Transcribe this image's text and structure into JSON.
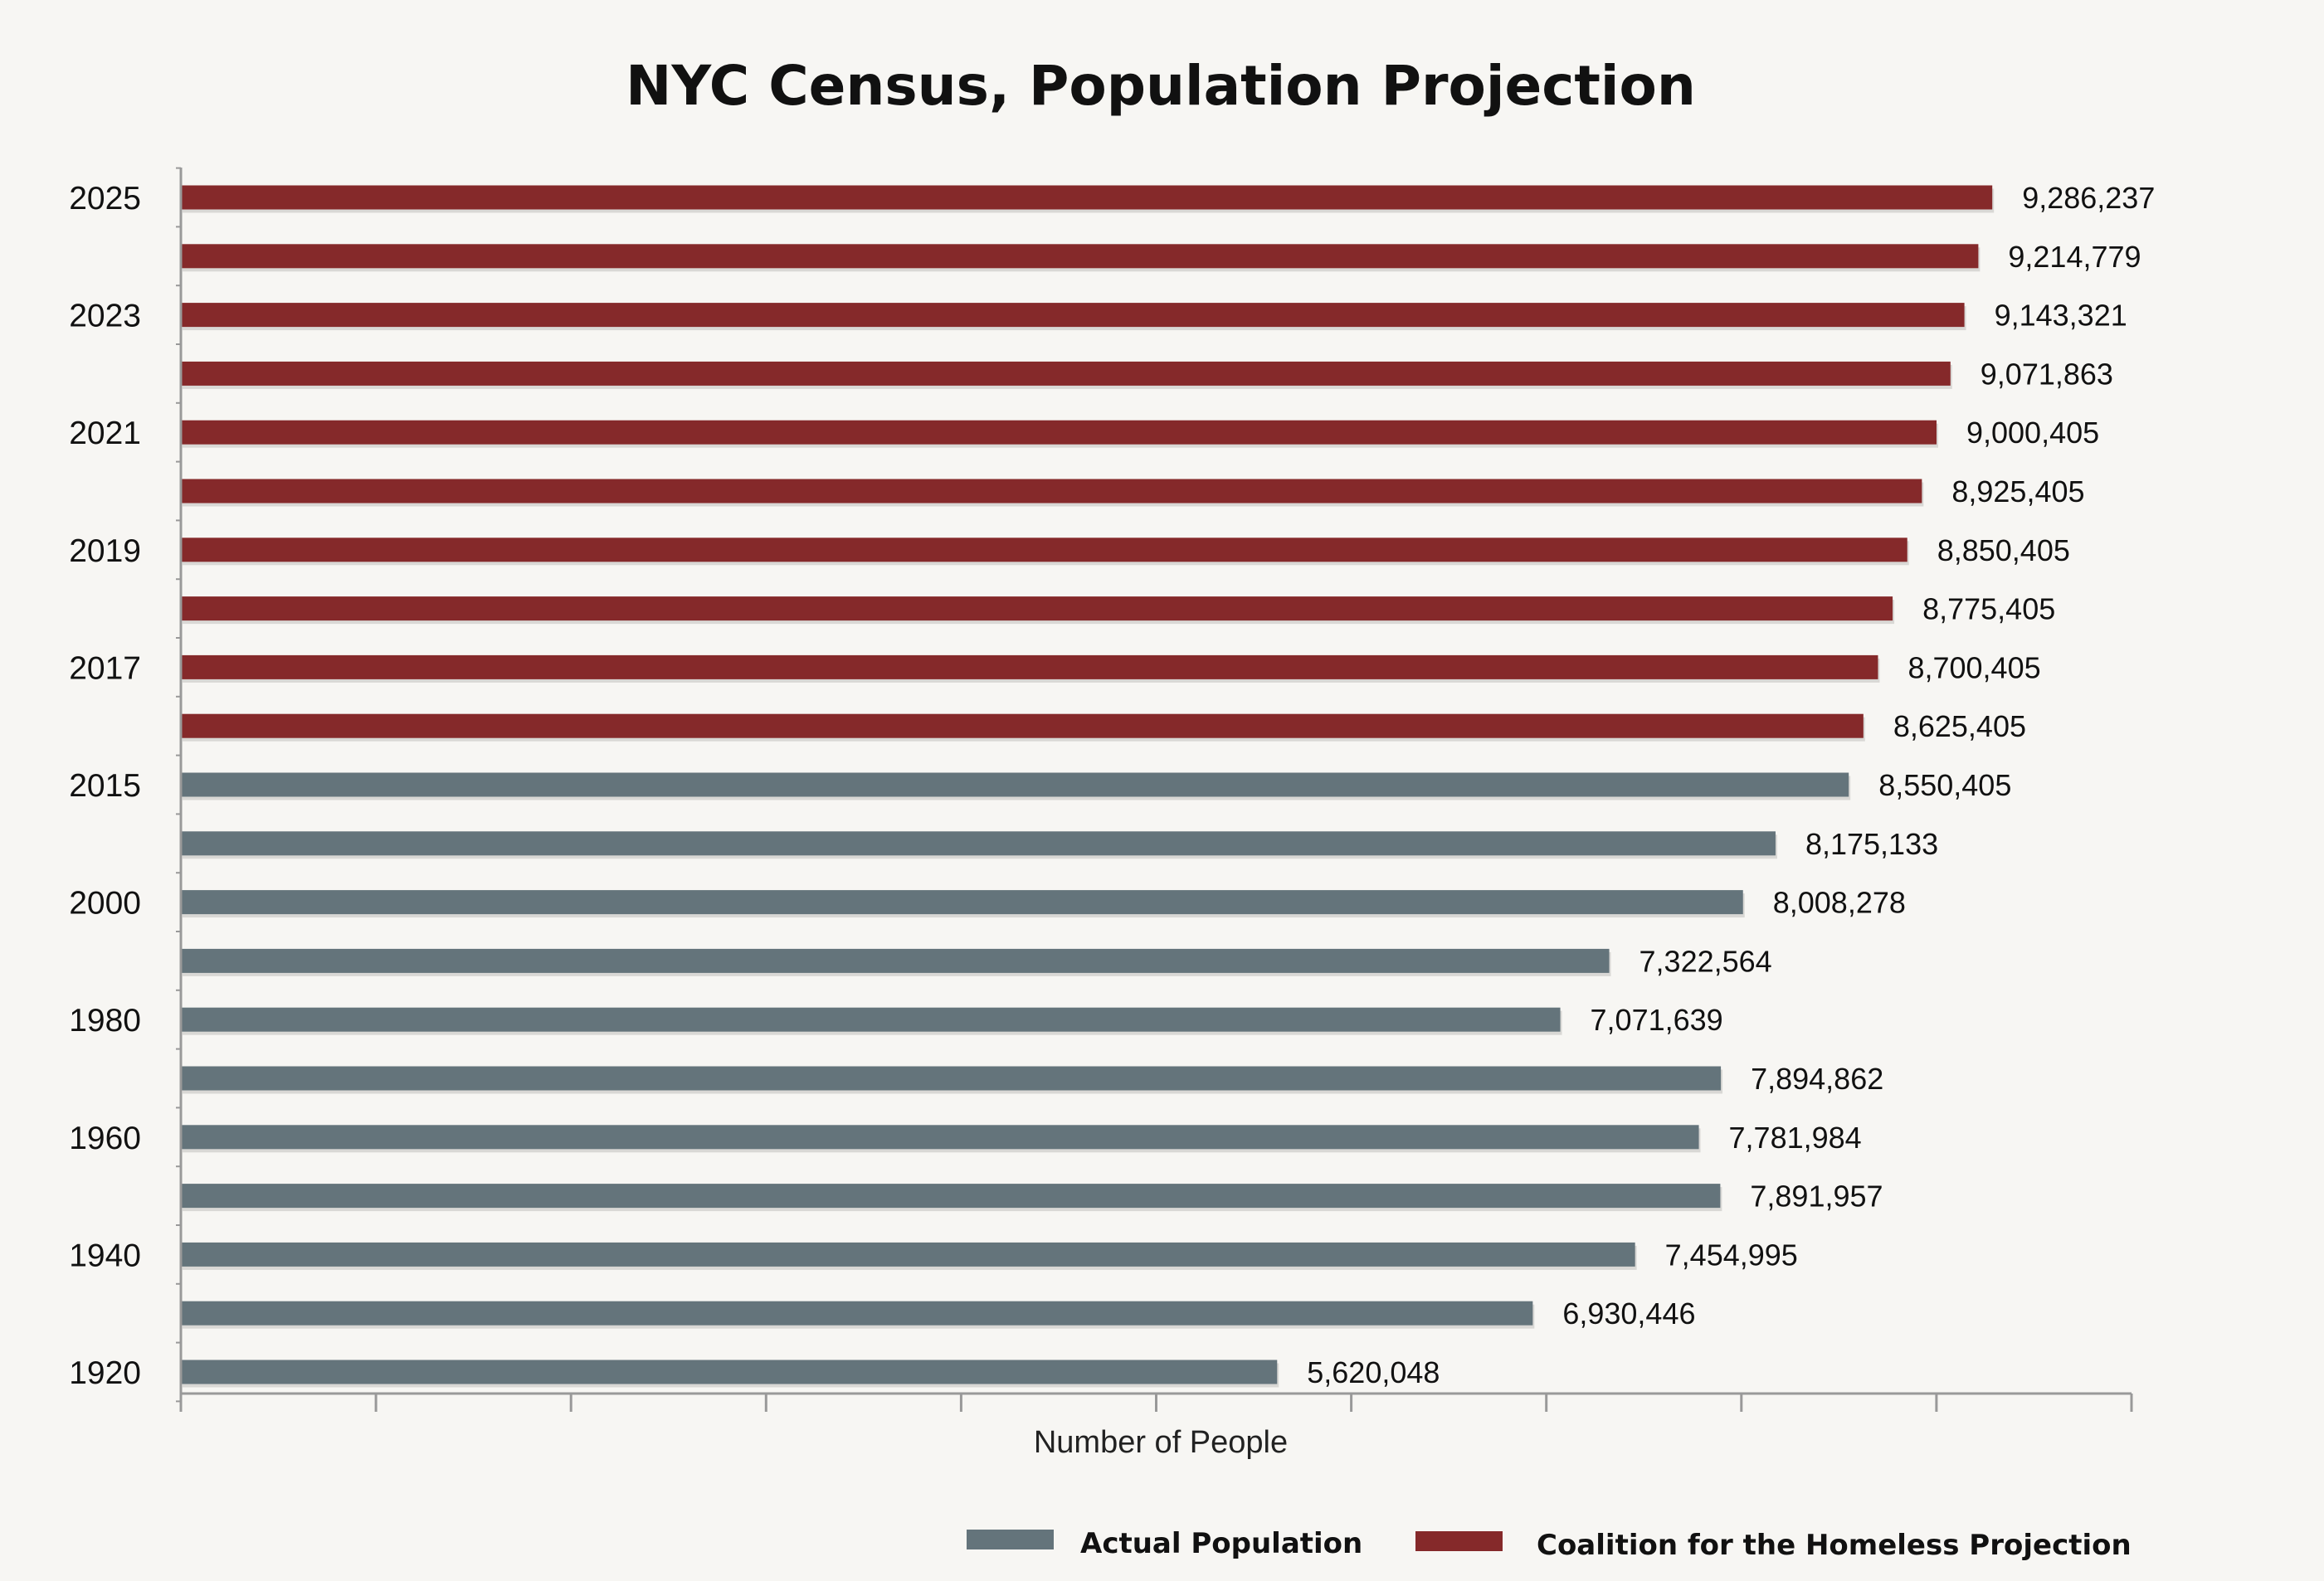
{
  "chart_data": {
    "type": "bar",
    "orientation": "horizontal",
    "title": "NYC Census, Population Projection",
    "xlabel": "Number of People",
    "ylabel": "",
    "xlim": [
      0,
      10000000
    ],
    "x_tick_step": 1000000,
    "x_tick_labels_shown": false,
    "grid": false,
    "legend_position": "bottom-right",
    "colors": {
      "actual": "#64747b",
      "projection": "#85292a",
      "background": "#f7f6f3"
    },
    "series_names": {
      "actual": "Actual Population",
      "projection": "Coalition for the Homeless Projection"
    },
    "categories": [
      "2025",
      "",
      "2023",
      "",
      "2021",
      "",
      "2019",
      "",
      "2017",
      "",
      "2015",
      "",
      "2000",
      "",
      "1980",
      "",
      "1960",
      "",
      "1940",
      "",
      "1920"
    ],
    "values": [
      9286237,
      9214779,
      9143321,
      9071863,
      9000405,
      8925405,
      8850405,
      8775405,
      8700405,
      8625405,
      8550405,
      8175133,
      8008278,
      7322564,
      7071639,
      7894862,
      7781984,
      7891957,
      7454995,
      6930446,
      5620048
    ],
    "value_labels": [
      "9,286,237",
      "9,214,779",
      "9,143,321",
      "9,071,863",
      "9,000,405",
      "8,925,405",
      "8,850,405",
      "8,775,405",
      "8,700,405",
      "8,625,405",
      "8,550,405",
      "8,175,133",
      "8,008,278",
      "7,322,564",
      "7,071,639",
      "7,894,862",
      "7,781,984",
      "7,891,957",
      "7,454,995",
      "6,930,446",
      "5,620,048"
    ],
    "series_of_bar": [
      "projection",
      "projection",
      "projection",
      "projection",
      "projection",
      "projection",
      "projection",
      "projection",
      "projection",
      "projection",
      "actual",
      "actual",
      "actual",
      "actual",
      "actual",
      "actual",
      "actual",
      "actual",
      "actual",
      "actual",
      "actual"
    ]
  }
}
